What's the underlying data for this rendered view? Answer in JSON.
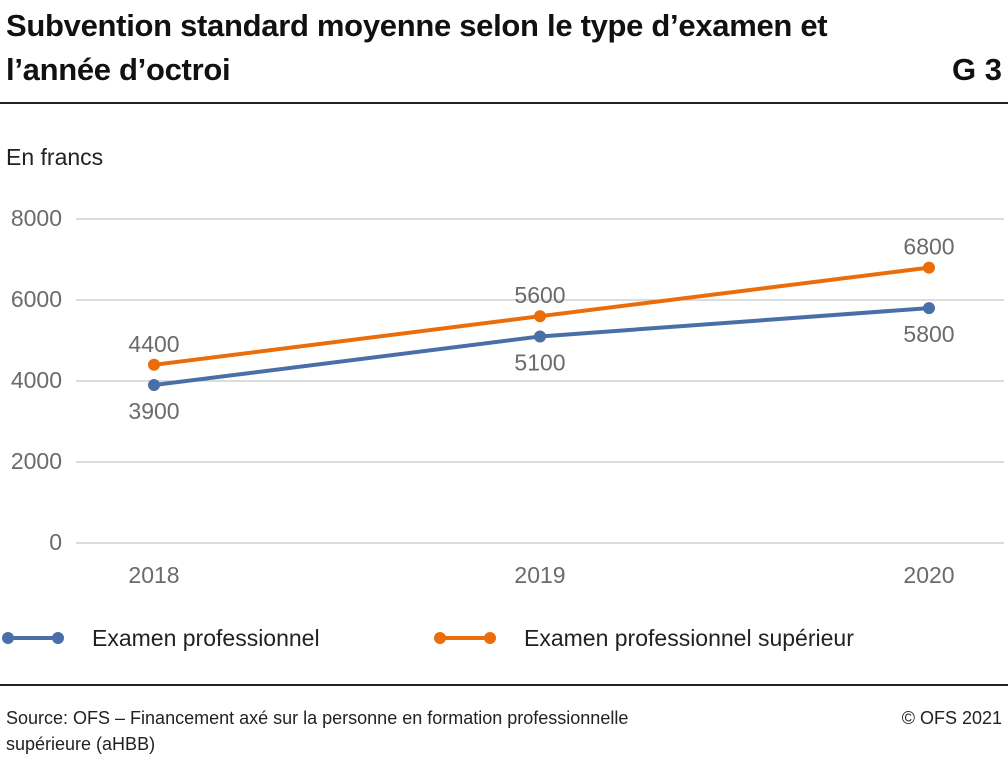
{
  "header": {
    "title": "Subvention standard moyenne selon le type d’examen et l’année d’octroi",
    "figure_number": "G 3"
  },
  "footer": {
    "source": "Source: OFS – Financement axé sur la personne en formation professionnelle supérieure (aHBB)",
    "copyright": "© OFS 2021"
  },
  "chart_data": {
    "type": "line",
    "title": "Subvention standard moyenne selon le type d’examen et l’année d’octroi",
    "ylabel": "En francs",
    "xlabel": "",
    "categories": [
      "2018",
      "2019",
      "2020"
    ],
    "ylim": [
      0,
      8000
    ],
    "yticks": [
      0,
      2000,
      4000,
      6000,
      8000
    ],
    "grid": "horizontal",
    "legend_position": "bottom",
    "series": [
      {
        "name": "Examen professionnel",
        "values": [
          3900,
          5100,
          5800
        ],
        "color": "#4a6ea8",
        "label_position": "below"
      },
      {
        "name": "Examen professionnel supérieur",
        "values": [
          4400,
          5600,
          6800
        ],
        "color": "#ea6c0a",
        "label_position": "above"
      }
    ],
    "colors": {
      "grid": "#c8c8c8",
      "tick_label": "#6b6b6b"
    }
  }
}
